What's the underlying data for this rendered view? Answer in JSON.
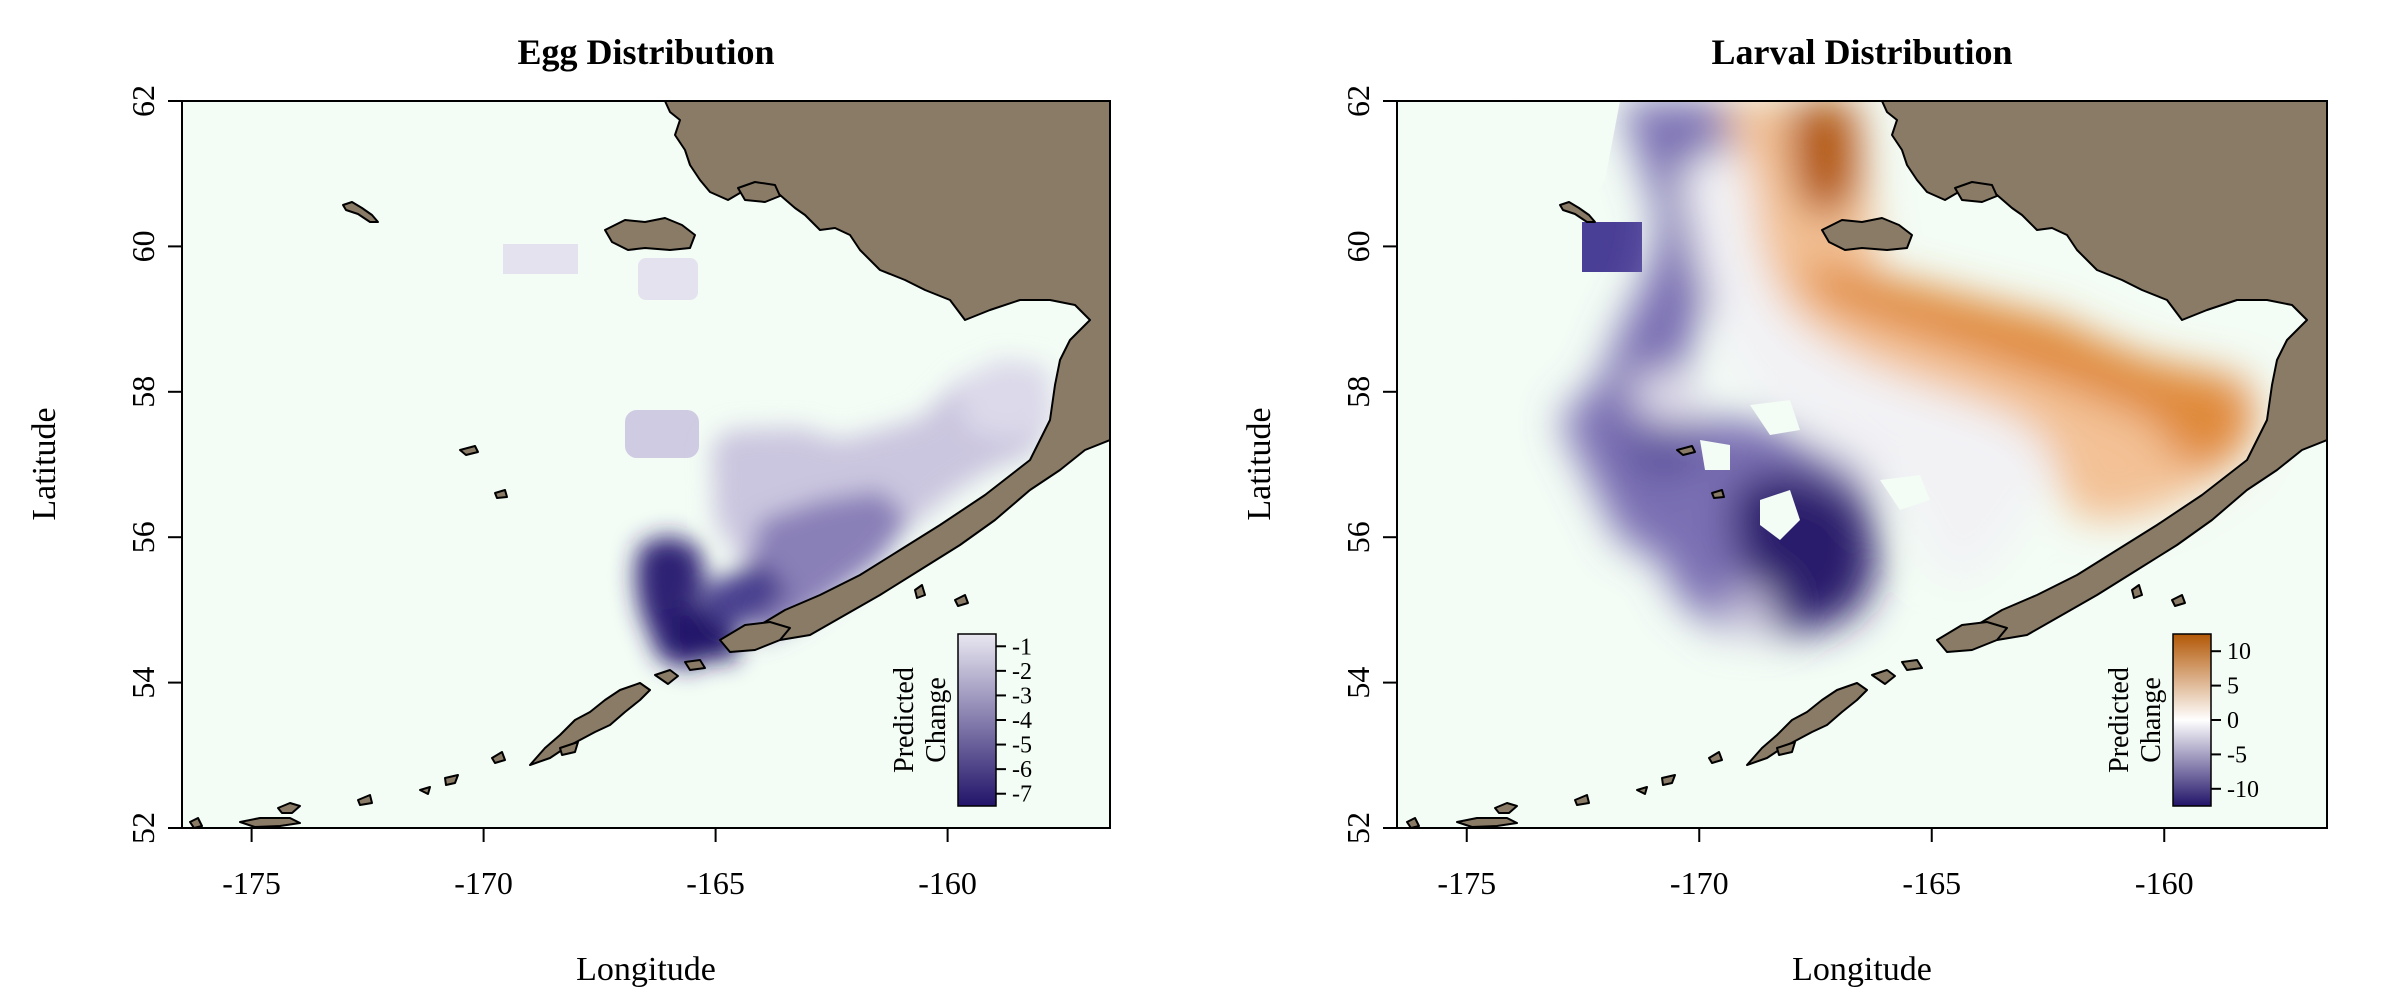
{
  "panels": [
    {
      "title": "Egg Distribution",
      "xlabel": "Longitude",
      "ylabel": "Latitude",
      "xticks": [
        -175,
        -170,
        -165,
        -160
      ],
      "yticks": [
        52,
        54,
        56,
        58,
        60,
        62
      ],
      "xlim": [
        -176.5,
        -156.5
      ],
      "ylim": [
        52,
        62
      ],
      "legend": {
        "title_lines": [
          "Predicted",
          "Change"
        ],
        "ticks": [
          -1,
          -2,
          -3,
          -4,
          -5,
          -6,
          -7
        ],
        "range": [
          -7.5,
          -0.5
        ],
        "stops": [
          "#e9e7f1",
          "#221469"
        ]
      }
    },
    {
      "title": "Larval Distribution",
      "xlabel": "Longitude",
      "ylabel": "Latitude",
      "xticks": [
        -175,
        -170,
        -165,
        -160
      ],
      "yticks": [
        52,
        54,
        56,
        58,
        60,
        62
      ],
      "xlim": [
        -176.5,
        -156.5
      ],
      "ylim": [
        52,
        62
      ],
      "legend": {
        "title_lines": [
          "Predicted",
          "Change"
        ],
        "ticks": [
          10,
          5,
          0,
          -5,
          -10
        ],
        "range": [
          -12.5,
          12.5
        ],
        "stops": [
          "#221469",
          "#ffffff",
          "#b35806"
        ]
      }
    }
  ],
  "colors": {
    "water": "#f3fcf5",
    "land": "#8a7b66",
    "diverging_negative": "#221469",
    "diverging_neutral": "#ffffff",
    "diverging_positive": "#b35806"
  },
  "chart_data": [
    {
      "type": "heatmap",
      "title": "Egg Distribution",
      "xlabel": "Longitude",
      "ylabel": "Latitude",
      "xlim": [
        -176.5,
        -156.5
      ],
      "ylim": [
        52,
        62
      ],
      "colorbar": {
        "label": "Predicted Change",
        "range": [
          -7.5,
          -0.5
        ]
      },
      "regions": [
        {
          "lon": [
            -169.5,
            -168.0
          ],
          "lat": [
            59.6,
            60.0
          ],
          "value": -0.8
        },
        {
          "lon": [
            -166.7,
            -165.5
          ],
          "lat": [
            59.4,
            59.9
          ],
          "value": -0.8
        },
        {
          "lon": [
            -166.7,
            -165.5
          ],
          "lat": [
            56.8,
            57.6
          ],
          "value": -2.0
        },
        {
          "lon": [
            -164.8,
            -161.5
          ],
          "lat": [
            56.3,
            57.5
          ],
          "value": -2.5
        },
        {
          "lon": [
            -161.5,
            -158.7
          ],
          "lat": [
            56.3,
            58.3
          ],
          "value": -1.5
        },
        {
          "lon": [
            -166.3,
            -164.8
          ],
          "lat": [
            55.0,
            56.0
          ],
          "value": -6.5
        },
        {
          "lon": [
            -165.7,
            -164.5
          ],
          "lat": [
            54.4,
            55.3
          ],
          "value": -7.0
        }
      ]
    },
    {
      "type": "heatmap",
      "title": "Larval Distribution",
      "xlabel": "Longitude",
      "ylabel": "Latitude",
      "xlim": [
        -176.5,
        -156.5
      ],
      "ylim": [
        52,
        62
      ],
      "colorbar": {
        "label": "Predicted Change",
        "range": [
          -12.5,
          12.5
        ]
      },
      "regions": [
        {
          "lon": [
            -168.0,
            -166.5
          ],
          "lat": [
            60.0,
            62.0
          ],
          "value": 12
        },
        {
          "lon": [
            -164.0,
            -160.0
          ],
          "lat": [
            58.0,
            58.8
          ],
          "value": 10
        },
        {
          "lon": [
            -160.0,
            -158.5
          ],
          "lat": [
            57.0,
            58.2
          ],
          "value": 9
        },
        {
          "lon": [
            -169.0,
            -168.0
          ],
          "lat": [
            58.5,
            59.5
          ],
          "value": 0
        },
        {
          "lon": [
            -172.5,
            -171.0
          ],
          "lat": [
            59.6,
            60.3
          ],
          "value": -9
        },
        {
          "lon": [
            -170.5,
            -168.0
          ],
          "lat": [
            56.8,
            58.0
          ],
          "value": -7
        },
        {
          "lon": [
            -167.0,
            -164.5
          ],
          "lat": [
            55.0,
            56.5
          ],
          "value": -12
        },
        {
          "lon": [
            -169.0,
            -168.0
          ],
          "lat": [
            54.8,
            55.3
          ],
          "value": -3
        }
      ]
    }
  ]
}
